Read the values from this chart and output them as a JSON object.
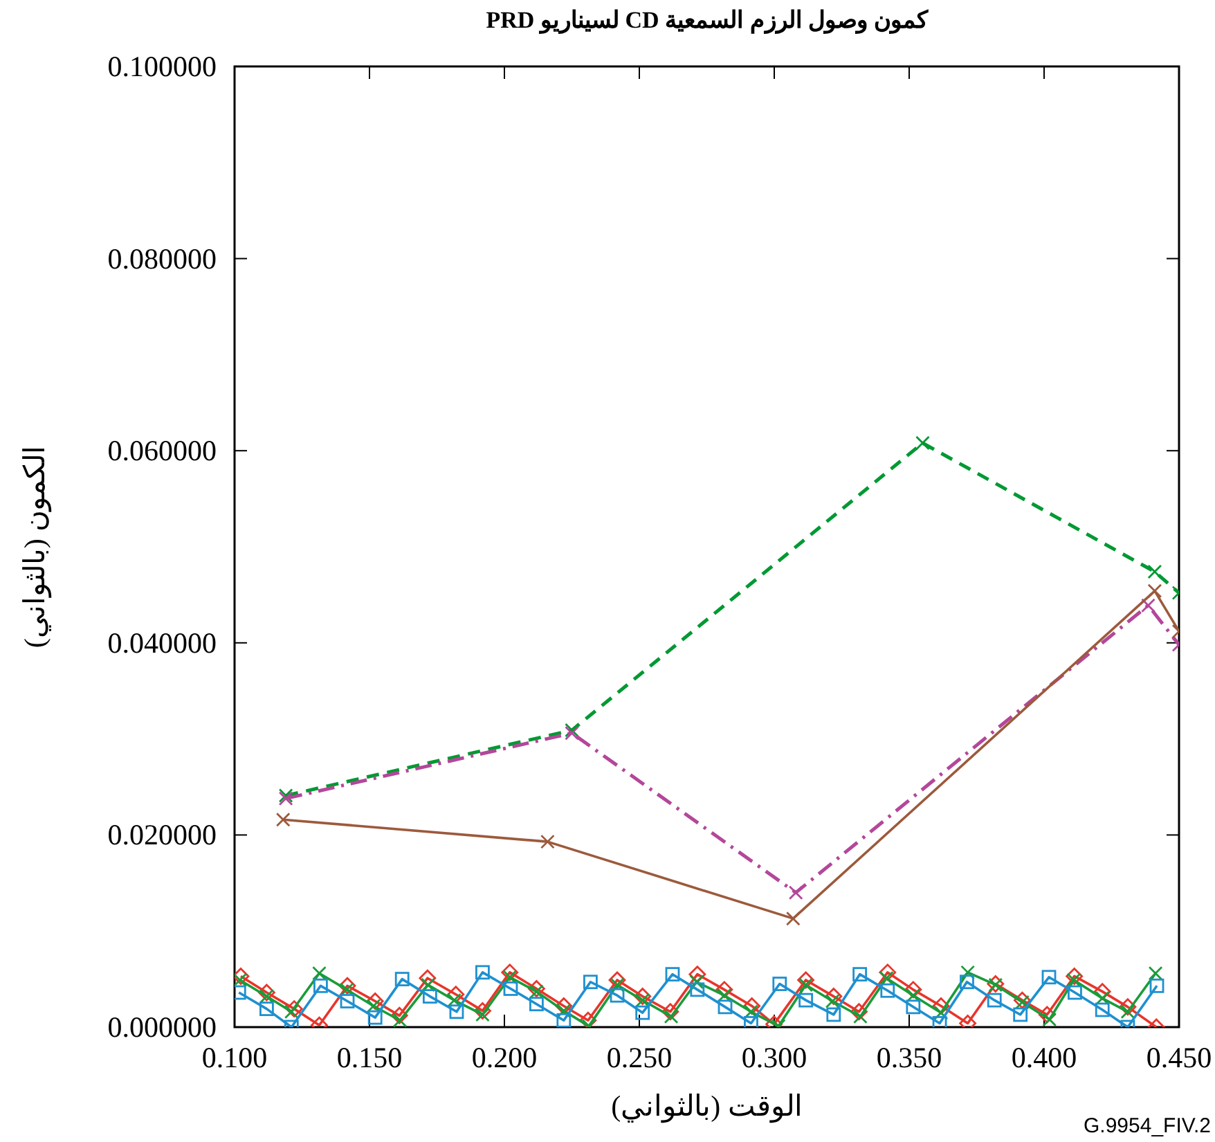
{
  "chart_data": {
    "type": "line",
    "title": "كمون وصول الرزم السمعية CD لسيناريو PRD",
    "xlabel": "الوقت (بالثواني)",
    "ylabel": "الكمون (بالثواني)",
    "xlim": [
      0.1,
      0.45
    ],
    "ylim": [
      0,
      0.1
    ],
    "xticks": [
      {
        "value": 0.1,
        "label": "0.100"
      },
      {
        "value": 0.15,
        "label": "0.150"
      },
      {
        "value": 0.2,
        "label": "0.200"
      },
      {
        "value": 0.25,
        "label": "0.250"
      },
      {
        "value": 0.3,
        "label": "0.300"
      },
      {
        "value": 0.35,
        "label": "0.350"
      },
      {
        "value": 0.4,
        "label": "0.400"
      },
      {
        "value": 0.45,
        "label": "0.450"
      }
    ],
    "yticks": [
      {
        "value": 0,
        "label": "0.000000"
      },
      {
        "value": 0.02,
        "label": "0.020000"
      },
      {
        "value": 0.04,
        "label": "0.040000"
      },
      {
        "value": 0.06,
        "label": "0.060000"
      },
      {
        "value": 0.08,
        "label": "0.080000"
      },
      {
        "value": 0.1,
        "label": "0.100000"
      }
    ],
    "grid": false,
    "annotations": [
      "G.9954_FIV.2"
    ],
    "series": [
      {
        "color": "#009933",
        "line_style": "dashed",
        "marker": "cross",
        "x": [
          0.119,
          0.225,
          0.355,
          0.441,
          0.45
        ],
        "values": [
          0.0241,
          0.0309,
          0.0608,
          0.0474,
          0.0452
        ]
      },
      {
        "color": "#b3479a",
        "line_style": "dashdot",
        "marker": "cross",
        "x": [
          0.119,
          0.225,
          0.308,
          0.4386,
          0.45
        ],
        "values": [
          0.0238,
          0.0306,
          0.014,
          0.0439,
          0.0398
        ]
      },
      {
        "color": "#9c5a3c",
        "line_style": "solid",
        "marker": "cross",
        "x": [
          0.118,
          0.216,
          0.307,
          0.441,
          0.45
        ],
        "values": [
          0.0216,
          0.0193,
          0.0113,
          0.0454,
          0.0412
        ]
      },
      {
        "color": "#e8352b",
        "line_style": "solid",
        "marker": "diamond",
        "x": [
          0.1023,
          0.1119,
          0.1221,
          0.1314,
          0.1418,
          0.1521,
          0.1611,
          0.1715,
          0.182,
          0.1919,
          0.202,
          0.2119,
          0.222,
          0.231,
          0.2418,
          0.2512,
          0.2615,
          0.2715,
          0.2815,
          0.2917,
          0.2999,
          0.3117,
          0.322,
          0.3314,
          0.342,
          0.3515,
          0.3618,
          0.3717,
          0.382,
          0.3919,
          0.4011,
          0.4112,
          0.4216,
          0.431,
          0.4416
        ],
        "values": [
          0.0053,
          0.0036,
          0.0019,
          0.0002,
          0.0043,
          0.0027,
          0.0012,
          0.0051,
          0.0034,
          0.0017,
          0.0057,
          0.004,
          0.0022,
          0.0007,
          0.0049,
          0.0032,
          0.0016,
          0.0055,
          0.0039,
          0.0022,
          0.0003,
          0.0049,
          0.0032,
          0.0016,
          0.0057,
          0.0039,
          0.0022,
          0.0004,
          0.0045,
          0.0028,
          0.0013,
          0.0053,
          0.0037,
          0.0021,
          0.0
        ]
      },
      {
        "color": "#1a9c3a",
        "line_style": "solid",
        "marker": "cross",
        "x": [
          0.102,
          0.1119,
          0.1211,
          0.1314,
          0.1416,
          0.1515,
          0.1613,
          0.1717,
          0.1814,
          0.1919,
          0.202,
          0.2119,
          0.222,
          0.2313,
          0.2418,
          0.2512,
          0.2618,
          0.2712,
          0.2815,
          0.2914,
          0.3016,
          0.3117,
          0.3216,
          0.3319,
          0.3416,
          0.3515,
          0.3618,
          0.3717,
          0.382,
          0.3919,
          0.402,
          0.411,
          0.4216,
          0.431,
          0.4413
        ],
        "values": [
          0.0049,
          0.0032,
          0.0016,
          0.0056,
          0.0039,
          0.0022,
          0.0007,
          0.0044,
          0.0028,
          0.0013,
          0.0052,
          0.0037,
          0.0017,
          0.0001,
          0.0044,
          0.0028,
          0.0011,
          0.0047,
          0.0033,
          0.0016,
          0.0001,
          0.0044,
          0.0027,
          0.0011,
          0.0051,
          0.0033,
          0.0015,
          0.0057,
          0.0044,
          0.0026,
          0.0008,
          0.0049,
          0.003,
          0.0016,
          0.0056
        ]
      },
      {
        "color": "#1e90d0",
        "line_style": "solid",
        "marker": "square",
        "x": [
          0.1016,
          0.1119,
          0.1211,
          0.1319,
          0.1418,
          0.1521,
          0.1621,
          0.1724,
          0.1823,
          0.1919,
          0.2023,
          0.2119,
          0.222,
          0.2319,
          0.2418,
          0.2512,
          0.2623,
          0.2715,
          0.2818,
          0.2914,
          0.302,
          0.3117,
          0.322,
          0.3317,
          0.342,
          0.3515,
          0.3613,
          0.3714,
          0.3816,
          0.3912,
          0.4018,
          0.4114,
          0.4216,
          0.431,
          0.4418
        ],
        "values": [
          0.0036,
          0.0019,
          0.0,
          0.0043,
          0.0027,
          0.001,
          0.005,
          0.0032,
          0.0016,
          0.0057,
          0.004,
          0.0024,
          0.0007,
          0.0047,
          0.0033,
          0.0015,
          0.0055,
          0.0039,
          0.0021,
          0.0004,
          0.0045,
          0.0028,
          0.0013,
          0.0055,
          0.0038,
          0.0021,
          0.0004,
          0.0047,
          0.0028,
          0.0013,
          0.0052,
          0.0036,
          0.0018,
          0.0,
          0.0043
        ]
      }
    ]
  }
}
